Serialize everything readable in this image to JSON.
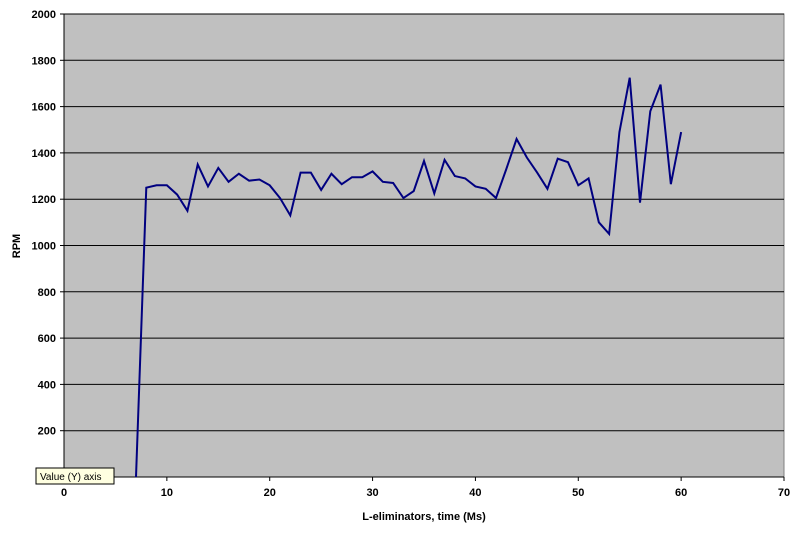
{
  "chart_data": {
    "type": "line",
    "x_label": "L-eliminators, time (Ms)",
    "y_label": "RPM",
    "tooltip": "Value (Y) axis",
    "x": [
      7,
      8,
      9,
      10,
      11,
      12,
      13,
      14,
      15,
      16,
      17,
      18,
      19,
      20,
      21,
      22,
      23,
      24,
      25,
      26,
      27,
      28,
      29,
      30,
      31,
      32,
      33,
      34,
      35,
      36,
      37,
      38,
      39,
      40,
      41,
      42,
      43,
      44,
      45,
      46,
      47,
      48,
      49,
      50,
      51,
      52,
      53,
      54,
      55,
      56,
      57,
      58,
      59,
      60
    ],
    "series": [
      {
        "color": "#000080",
        "values": [
          0,
          1250,
          1260,
          1260,
          1220,
          1150,
          1350,
          1255,
          1335,
          1275,
          1310,
          1280,
          1285,
          1260,
          1205,
          1130,
          1315,
          1315,
          1240,
          1310,
          1265,
          1295,
          1295,
          1320,
          1275,
          1270,
          1205,
          1235,
          1365,
          1225,
          1370,
          1300,
          1290,
          1255,
          1245,
          1205,
          1330,
          1460,
          1380,
          1315,
          1245,
          1375,
          1360,
          1260,
          1290,
          1100,
          1050,
          1490,
          1725,
          1185,
          1580,
          1695,
          1265,
          1490
        ]
      }
    ],
    "xlim": [
      0,
      70
    ],
    "xticks": [
      0,
      10,
      20,
      30,
      40,
      50,
      60,
      70
    ],
    "ylim": [
      0,
      2000
    ],
    "yticks": [
      200,
      400,
      600,
      800,
      1000,
      1200,
      1400,
      1600,
      1800,
      2000
    ],
    "grid": true,
    "background": "#c0c0c0"
  }
}
